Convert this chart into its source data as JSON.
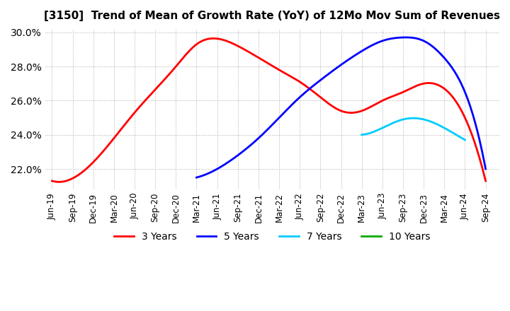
{
  "title": "[3150]  Trend of Mean of Growth Rate (YoY) of 12Mo Mov Sum of Revenues",
  "background_color": "#ffffff",
  "plot_bg_color": "#ffffff",
  "grid_color": "#aaaaaa",
  "legend_labels": [
    "3 Years",
    "5 Years",
    "7 Years",
    "10 Years"
  ],
  "legend_colors": [
    "#ff0000",
    "#0000ff",
    "#00ccff",
    "#00aa00"
  ],
  "ylim": [
    0.208,
    0.302
  ],
  "yticks": [
    0.22,
    0.24,
    0.26,
    0.28,
    0.3
  ],
  "xtick_labels": [
    "Jun-19",
    "Sep-19",
    "Dec-19",
    "Mar-20",
    "Jun-20",
    "Sep-20",
    "Dec-20",
    "Mar-21",
    "Jun-21",
    "Sep-21",
    "Dec-21",
    "Mar-22",
    "Jun-22",
    "Sep-22",
    "Dec-22",
    "Mar-23",
    "Jun-23",
    "Sep-23",
    "Dec-23",
    "Mar-24",
    "Jun-24",
    "Sep-24"
  ],
  "xtick_positions": [
    0,
    3,
    6,
    9,
    12,
    15,
    18,
    21,
    24,
    27,
    30,
    33,
    36,
    39,
    42,
    45,
    48,
    51,
    54,
    57,
    60,
    63
  ],
  "series": {
    "3years": {
      "knots_x": [
        0,
        6,
        12,
        18,
        21,
        27,
        33,
        36,
        39,
        42,
        45,
        48,
        51,
        54,
        57,
        60,
        63
      ],
      "knots_y": [
        0.213,
        0.224,
        0.253,
        0.28,
        0.293,
        0.292,
        0.278,
        0.271,
        0.262,
        0.254,
        0.254,
        0.26,
        0.265,
        0.27,
        0.267,
        0.25,
        0.213
      ],
      "color": "#ff0000",
      "linewidth": 2.0
    },
    "5years": {
      "knots_x": [
        21,
        24,
        27,
        30,
        33,
        36,
        39,
        42,
        45,
        48,
        51,
        54,
        57,
        60,
        63
      ],
      "knots_y": [
        0.215,
        0.22,
        0.228,
        0.238,
        0.25,
        0.262,
        0.272,
        0.281,
        0.289,
        0.295,
        0.297,
        0.295,
        0.285,
        0.265,
        0.22
      ],
      "color": "#0000ff",
      "linewidth": 2.0
    },
    "7years": {
      "knots_x": [
        45,
        48,
        51,
        54,
        57,
        60
      ],
      "knots_y": [
        0.24,
        0.244,
        0.249,
        0.249,
        0.244,
        0.237
      ],
      "color": "#00ccff",
      "linewidth": 2.0
    },
    "10years": {
      "knots_x": [],
      "knots_y": [],
      "color": "#00aa00",
      "linewidth": 2.0
    }
  }
}
